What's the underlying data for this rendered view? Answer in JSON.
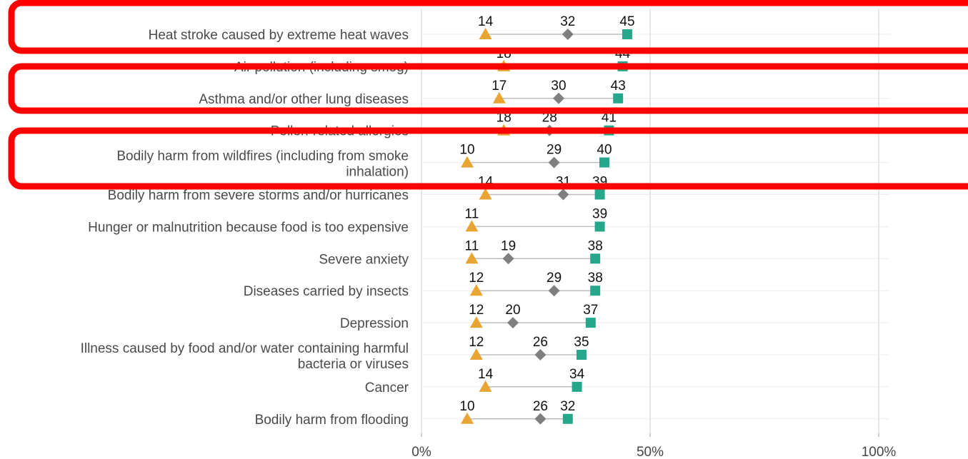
{
  "chart_data": {
    "type": "dot-range",
    "title": "",
    "xlabel": "",
    "ylabel": "",
    "xlim": [
      0,
      100
    ],
    "x_ticks": [
      0,
      50,
      100
    ],
    "x_tick_labels": [
      "0%",
      "50%",
      "100%"
    ],
    "grid": true,
    "series": [
      {
        "marker": "triangle",
        "color": "#E8A534"
      },
      {
        "marker": "diamond",
        "color": "#7F7F7F"
      },
      {
        "marker": "square",
        "color": "#26A78B"
      }
    ],
    "categories": [
      {
        "label": [
          "Heat stroke caused by extreme heat waves"
        ],
        "values": [
          14,
          32,
          45
        ],
        "labels": [
          "14",
          "32",
          "45"
        ]
      },
      {
        "label": [
          "Air pollution (including smog)"
        ],
        "values": [
          18,
          null,
          44
        ],
        "labels": [
          "18",
          "",
          "44"
        ]
      },
      {
        "label": [
          "Asthma and/or other lung diseases"
        ],
        "values": [
          17,
          30,
          43
        ],
        "labels": [
          "17",
          "30",
          "43"
        ]
      },
      {
        "label": [
          "Pollen-related allergies"
        ],
        "values": [
          18,
          28,
          41
        ],
        "labels": [
          "18",
          "28",
          "41"
        ]
      },
      {
        "label": [
          "Bodily harm from wildfires (including from smoke",
          "inhalation)"
        ],
        "values": [
          10,
          29,
          40
        ],
        "labels": [
          "10",
          "29",
          "40"
        ]
      },
      {
        "label": [
          "Bodily harm from severe storms and/or hurricanes"
        ],
        "values": [
          14,
          31,
          39
        ],
        "labels": [
          "14",
          "31",
          "39"
        ]
      },
      {
        "label": [
          "Hunger or malnutrition because food is too expensive"
        ],
        "values": [
          11,
          null,
          39
        ],
        "labels": [
          "11",
          "",
          "39"
        ]
      },
      {
        "label": [
          "Severe anxiety"
        ],
        "values": [
          11,
          19,
          38
        ],
        "labels": [
          "11",
          "19",
          "38"
        ]
      },
      {
        "label": [
          "Diseases carried by insects"
        ],
        "values": [
          12,
          29,
          38
        ],
        "labels": [
          "12",
          "29",
          "38"
        ]
      },
      {
        "label": [
          "Depression"
        ],
        "values": [
          12,
          20,
          37
        ],
        "labels": [
          "12",
          "20",
          "37"
        ]
      },
      {
        "label": [
          "Illness caused by food and/or water containing harmful",
          "bacteria or viruses"
        ],
        "values": [
          12,
          26,
          35
        ],
        "labels": [
          "12",
          "26",
          "35"
        ]
      },
      {
        "label": [
          "Cancer"
        ],
        "values": [
          14,
          null,
          34
        ],
        "labels": [
          "14",
          "",
          "34"
        ]
      },
      {
        "label": [
          "Bodily harm from flooding"
        ],
        "values": [
          10,
          26,
          32
        ],
        "labels": [
          "10",
          "26",
          "32"
        ]
      }
    ],
    "highlight_boxes_color": "#FF0000"
  }
}
